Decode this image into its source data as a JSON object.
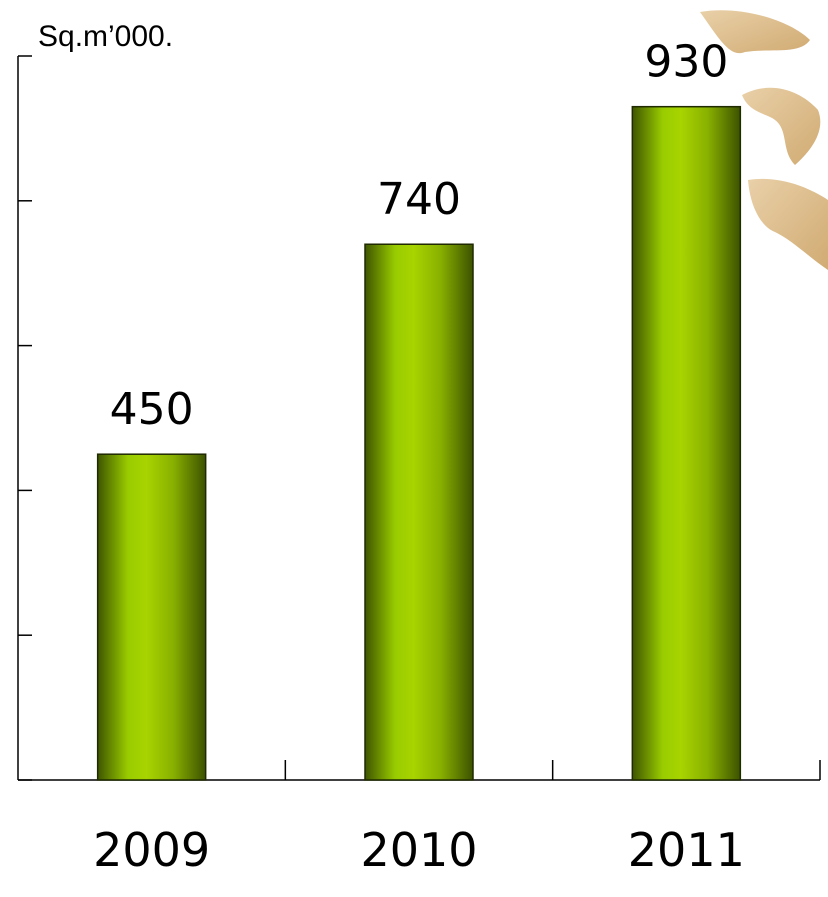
{
  "chart_data": {
    "type": "bar",
    "ylabel": "Sq.m’000.",
    "categories": [
      "2009",
      "2010",
      "2011"
    ],
    "values": [
      450,
      740,
      930
    ],
    "value_labels": [
      "450",
      "740",
      "930"
    ],
    "ylim": [
      0,
      1000
    ],
    "yticks": [
      0,
      200,
      400,
      600,
      800,
      1000
    ],
    "grid": false,
    "legend": "none",
    "bar_color": "#99cc00",
    "bar_shadow_color": "#3d5200"
  }
}
